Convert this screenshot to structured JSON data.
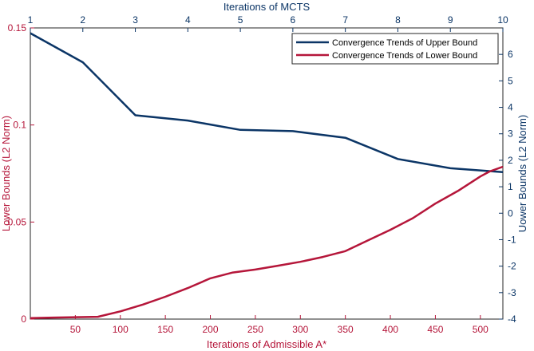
{
  "chart_data": {
    "type": "line",
    "title": "",
    "colors": {
      "upper": "#0b3566",
      "lower": "#b5163a"
    },
    "axes": {
      "bottom": {
        "label": "Iterations of Admissible A*",
        "range": [
          0,
          525
        ],
        "ticks": [
          50,
          100,
          150,
          200,
          250,
          300,
          350,
          400,
          450,
          500
        ]
      },
      "top": {
        "label": "Iterations of MCTS",
        "range": [
          1,
          10
        ],
        "ticks": [
          1,
          2,
          3,
          4,
          5,
          6,
          7,
          8,
          9,
          10
        ]
      },
      "left": {
        "label": "Lower Bounds (L2 Norm)",
        "range": [
          0,
          0.15
        ],
        "ticks": [
          0,
          0.05,
          0.1,
          0.15
        ],
        "tick_labels": [
          "0",
          "0.05",
          "0.1",
          "0.15"
        ]
      },
      "right": {
        "label": "Uower Bounds (L2 Norm)",
        "range": [
          -4,
          7
        ],
        "ticks": [
          -4,
          -3,
          -2,
          -1,
          0,
          1,
          2,
          3,
          4,
          5,
          6
        ]
      }
    },
    "series": [
      {
        "name": "Convergence Trends of Upper Bound",
        "axis_x": "top",
        "axis_y": "right",
        "x": [
          1,
          2,
          3,
          4,
          5,
          6,
          7,
          8,
          9,
          10
        ],
        "y": [
          6.8,
          5.7,
          3.7,
          3.5,
          3.15,
          3.1,
          2.85,
          2.05,
          1.7,
          1.55
        ]
      },
      {
        "name": "Convergence Trends of Lower Bound",
        "axis_x": "bottom",
        "axis_y": "left",
        "x": [
          0,
          25,
          50,
          75,
          100,
          125,
          150,
          175,
          200,
          225,
          250,
          275,
          300,
          325,
          350,
          375,
          400,
          425,
          450,
          475,
          500,
          510,
          525
        ],
        "y": [
          0.0005,
          0.0008,
          0.001,
          0.0012,
          0.004,
          0.0075,
          0.0115,
          0.016,
          0.021,
          0.024,
          0.0255,
          0.0275,
          0.0295,
          0.032,
          0.035,
          0.0405,
          0.046,
          0.052,
          0.0595,
          0.066,
          0.0735,
          0.076,
          0.0785
        ]
      }
    ],
    "legend": {
      "placement": "top-right"
    },
    "grid": false
  }
}
